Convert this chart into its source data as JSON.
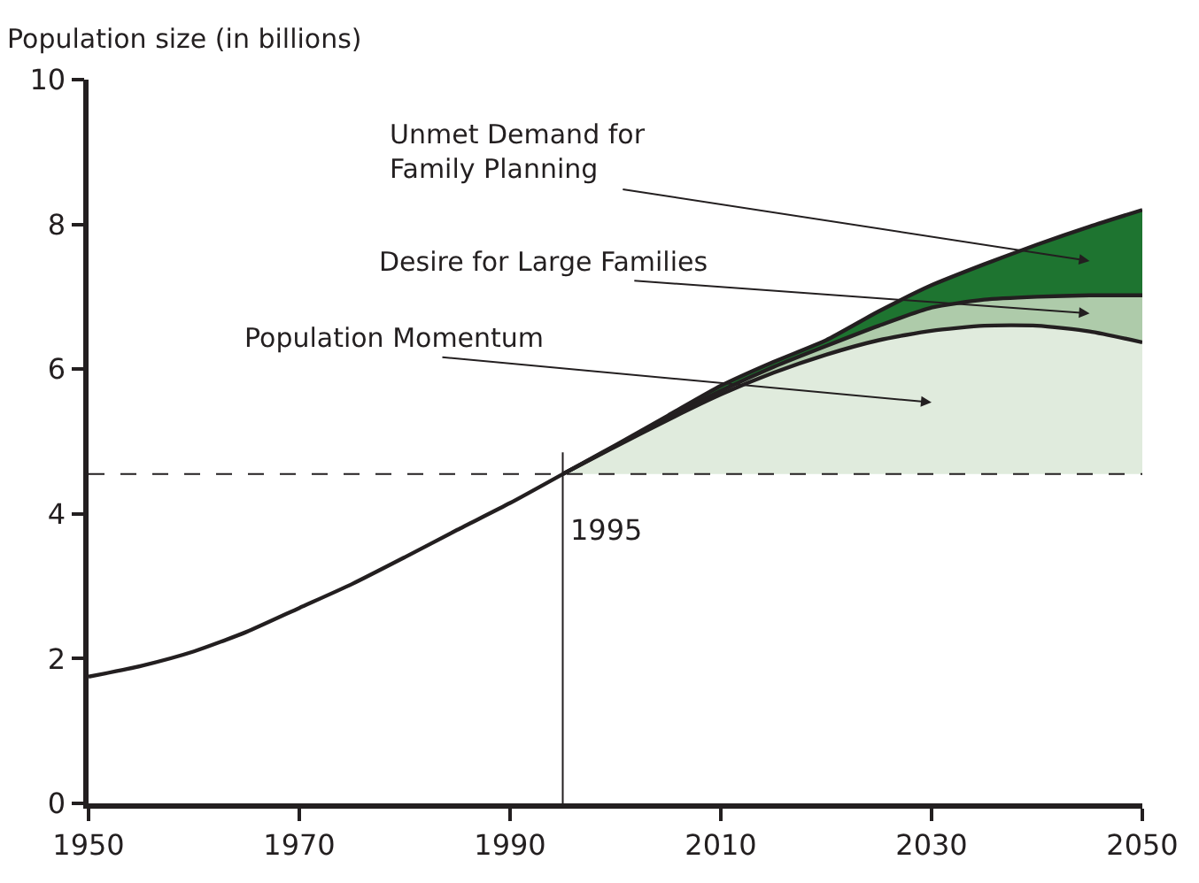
{
  "chart_data": {
    "type": "area",
    "ylabel": "Population size (in billions)",
    "xlim": [
      1950,
      2050
    ],
    "ylim": [
      0,
      10
    ],
    "xticks": [
      1950,
      1970,
      1990,
      2010,
      2030,
      2050
    ],
    "yticks": [
      0,
      2,
      4,
      6,
      8,
      10
    ],
    "grid": false,
    "marker": "none",
    "series": [
      {
        "type": "line",
        "color": "#231f20",
        "x": [
          1950,
          1955,
          1960,
          1965,
          1970,
          1975,
          1980,
          1985,
          1990,
          1995
        ],
        "values": [
          1.75,
          1.9,
          2.1,
          2.37,
          2.7,
          3.03,
          3.4,
          3.78,
          4.15,
          4.55
        ]
      },
      {
        "color": "#e0ebdd",
        "x": [
          1995,
          2000,
          2005,
          2010,
          2015,
          2020,
          2025,
          2030,
          2035,
          2040,
          2045,
          2050
        ],
        "values": [
          4.55,
          4.93,
          5.3,
          5.65,
          5.95,
          6.2,
          6.4,
          6.53,
          6.6,
          6.6,
          6.52,
          6.37
        ]
      },
      {
        "color": "#aecbaa",
        "x": [
          1995,
          2000,
          2005,
          2010,
          2015,
          2020,
          2025,
          2030,
          2035,
          2040,
          2045,
          2050
        ],
        "values": [
          4.55,
          4.94,
          5.33,
          5.7,
          6.03,
          6.32,
          6.6,
          6.85,
          6.96,
          7.0,
          7.02,
          7.02
        ]
      },
      {
        "color": "#1e7430",
        "x": [
          1995,
          2000,
          2005,
          2010,
          2015,
          2020,
          2025,
          2030,
          2035,
          2040,
          2045,
          2050
        ],
        "values": [
          4.55,
          4.95,
          5.36,
          5.77,
          6.1,
          6.4,
          6.8,
          7.16,
          7.45,
          7.72,
          7.97,
          8.2
        ]
      }
    ],
    "ref_lines": [
      {
        "axis": "x",
        "value": 1995,
        "label": "1995",
        "color": "#231f20",
        "line_style": "solid"
      },
      {
        "axis": "y",
        "value": 4.55,
        "color": "#231f20",
        "line_style": "dashed"
      }
    ],
    "annotations": [
      "Unmet Demand for\nFamily Planning",
      "Desire for Large Families",
      "Population Momentum"
    ]
  }
}
